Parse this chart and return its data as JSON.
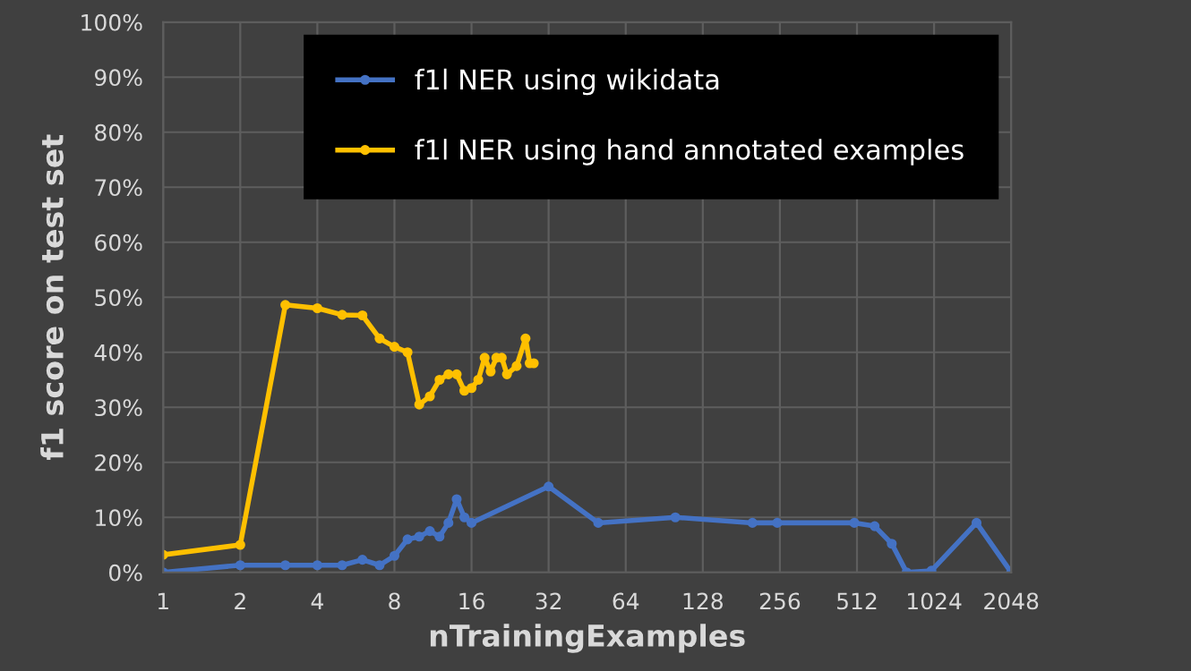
{
  "chart_data": {
    "type": "line",
    "xlabel": "nTrainingExamples",
    "ylabel": "f1 score on test set",
    "log": "x",
    "xlim": [
      1,
      2048
    ],
    "xticks": [
      1,
      2,
      4,
      8,
      16,
      32,
      64,
      128,
      256,
      512,
      1024,
      2048
    ],
    "ylim": [
      0,
      100
    ],
    "yticks": [
      {
        "value": 0,
        "label": "0%"
      },
      {
        "value": 10,
        "label": "10%"
      },
      {
        "value": 20,
        "label": "20%"
      },
      {
        "value": 30,
        "label": "30%"
      },
      {
        "value": 40,
        "label": "40%"
      },
      {
        "value": 50,
        "label": "50%"
      },
      {
        "value": 60,
        "label": "60%"
      },
      {
        "value": 70,
        "label": "70%"
      },
      {
        "value": 80,
        "label": "80%"
      },
      {
        "value": 90,
        "label": "90%"
      },
      {
        "value": 100,
        "label": "100%"
      }
    ],
    "grid": true,
    "legend": "top right",
    "marker": "circle",
    "line_style": "solid",
    "series": [
      {
        "name": "f1l NER using wikidata",
        "color": "#4472c4",
        "x": [
          1,
          2,
          3,
          4,
          5,
          6,
          7,
          8,
          9,
          10,
          11,
          12,
          13,
          14,
          15,
          16,
          32,
          50,
          100,
          200,
          250,
          500,
          600,
          700,
          800,
          1000,
          1500,
          2048
        ],
        "values": [
          0,
          1.3,
          1.3,
          1.3,
          1.3,
          2.3,
          1.3,
          3,
          6,
          6.5,
          7.5,
          6.5,
          9,
          13.3,
          10,
          9,
          15.6,
          9,
          10,
          9,
          9,
          9,
          8.4,
          5.2,
          0,
          0.3,
          9,
          0
        ]
      },
      {
        "name": "f1l NER using hand annotated examples",
        "color": "#ffc000",
        "x": [
          1,
          2,
          3,
          4,
          5,
          6,
          7,
          8,
          9,
          10,
          11,
          12,
          13,
          14,
          15,
          16,
          17,
          18,
          19,
          20,
          21,
          22,
          24,
          26,
          27,
          28
        ],
        "values": [
          3.2,
          5,
          48.6,
          48,
          46.8,
          46.7,
          42.5,
          41,
          40,
          30.5,
          32,
          35,
          36,
          36,
          33,
          33.5,
          35,
          39,
          36.5,
          39,
          39,
          36,
          37.5,
          42.5,
          38,
          38
        ]
      }
    ]
  }
}
